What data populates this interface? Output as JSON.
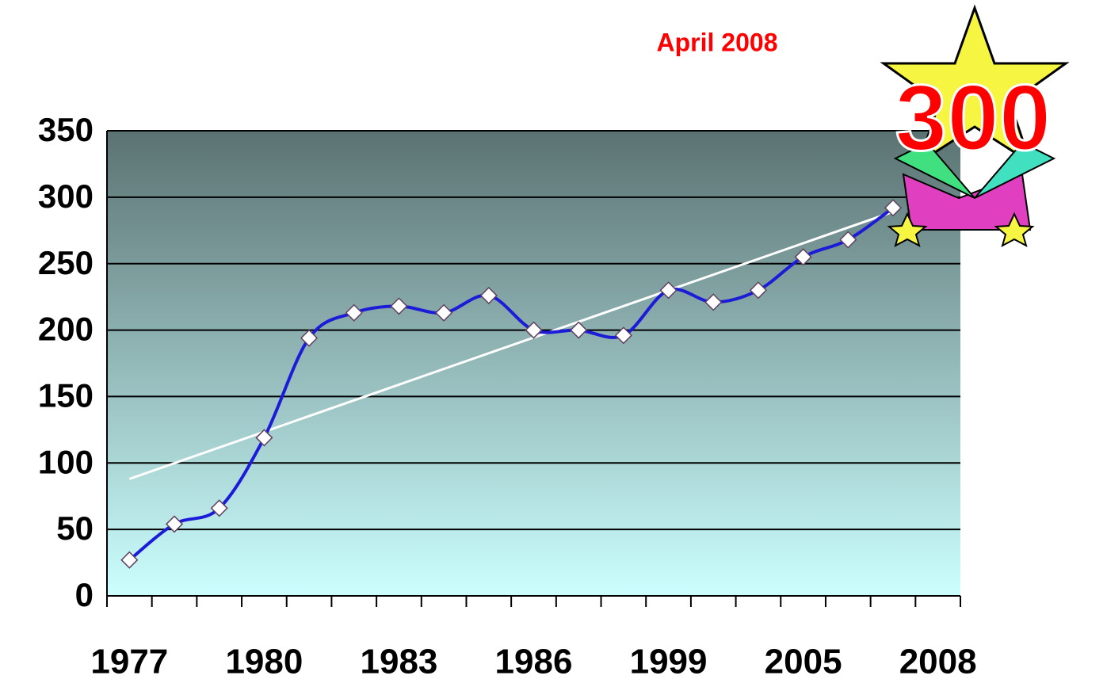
{
  "chart_data": {
    "type": "line",
    "annotations": {
      "date": "April 2008",
      "badge": "300"
    },
    "categories": [
      "1977",
      null,
      null,
      "1980",
      null,
      null,
      "1983",
      null,
      null,
      "1986",
      null,
      null,
      "1999",
      null,
      null,
      "2005",
      null,
      null,
      "2008"
    ],
    "series": [
      {
        "color": "#1c1cd8",
        "values": [
          27,
          54,
          66,
          119,
          194,
          213,
          218,
          213,
          226,
          200,
          200,
          196,
          230,
          221,
          230,
          255,
          268,
          292,
          null
        ]
      }
    ],
    "trendline": {
      "color": "#ffffff",
      "values": [
        88,
        289
      ]
    },
    "ylim": [
      0,
      350
    ],
    "yticks": [
      0,
      50,
      100,
      150,
      200,
      250,
      300,
      350
    ],
    "grid": true,
    "background": [
      "#5b7272",
      "#ccffff"
    ]
  }
}
